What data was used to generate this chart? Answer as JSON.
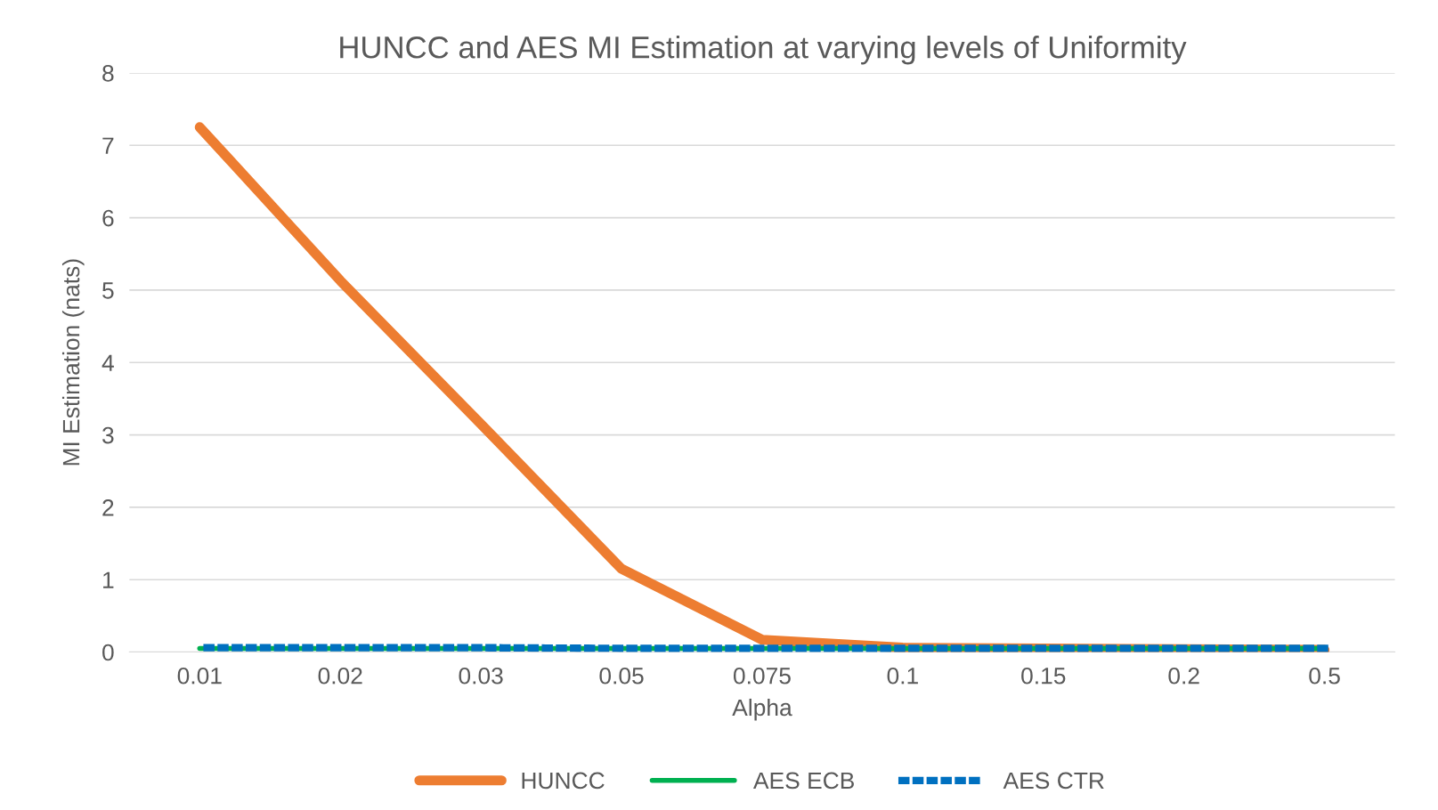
{
  "chart_data": {
    "type": "line",
    "title": "HUNCC and AES MI Estimation at varying levels of Uniformity",
    "xlabel": "Alpha",
    "ylabel": "MI Estimation (nats)",
    "categories": [
      "0.01",
      "0.02",
      "0.03",
      "0.05",
      "0.075",
      "0.1",
      "0.15",
      "0.2",
      "0.5"
    ],
    "series": [
      {
        "name": "HUNCC",
        "color": "#ed7d31",
        "line_style": "solid",
        "values": [
          7.25,
          5.13,
          3.15,
          1.15,
          0.17,
          0.06,
          0.05,
          0.04,
          0.03
        ]
      },
      {
        "name": "AES ECB",
        "color": "#00b050",
        "line_style": "solid",
        "values": [
          0.05,
          0.05,
          0.05,
          0.05,
          0.05,
          0.05,
          0.05,
          0.05,
          0.05
        ]
      },
      {
        "name": "AES CTR",
        "color": "#0070c0",
        "line_style": "dotted",
        "values": [
          0.06,
          0.06,
          0.06,
          0.05,
          0.05,
          0.05,
          0.05,
          0.05,
          0.05
        ]
      }
    ],
    "ylim": [
      0,
      8
    ],
    "yticks": [
      0,
      1,
      2,
      3,
      4,
      5,
      6,
      7,
      8
    ],
    "grid": "y",
    "legend": "bottom",
    "marker": "none"
  }
}
